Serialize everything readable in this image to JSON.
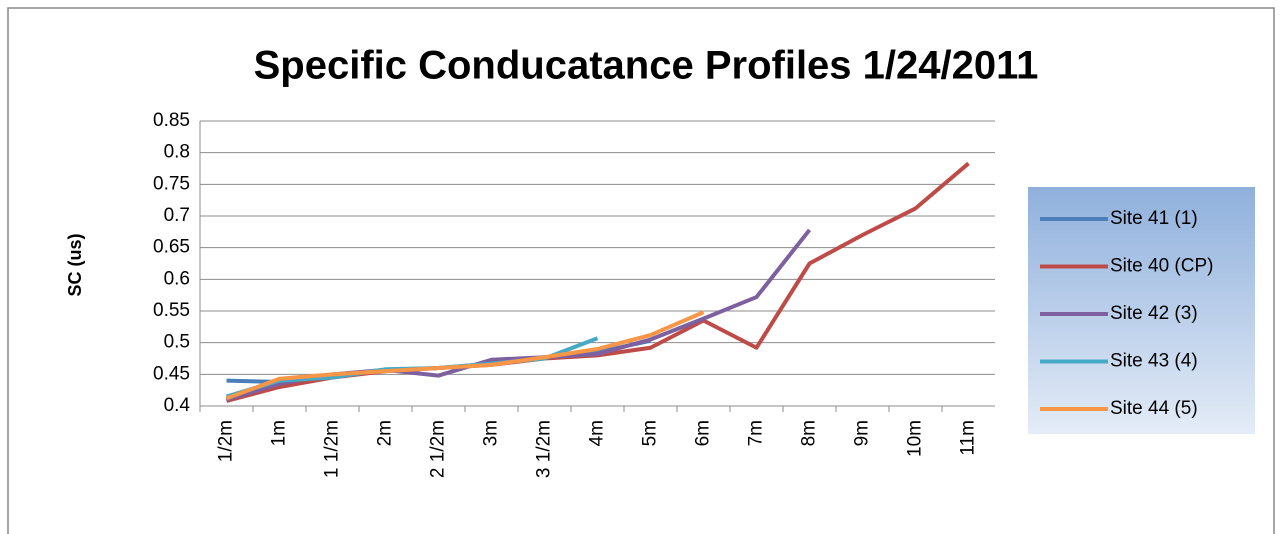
{
  "chart_data": {
    "type": "line",
    "title": "Specific Conducatance Profiles 1/24/2011",
    "y_label": "SC (us)",
    "categories": [
      "1/2m",
      "1m",
      "1 1/2m",
      "2m",
      "2 1/2m",
      "3m",
      "3 1/2m",
      "4m",
      "5m",
      "6m",
      "7m",
      "8m",
      "9m",
      "10m",
      "11m"
    ],
    "series": [
      {
        "name": "Site 41 (1)",
        "color": "#4a7ebb",
        "values": [
          0.44,
          0.438,
          0.447,
          0.456,
          0.46,
          0.467,
          0.477,
          0.485,
          0.503,
          null,
          null,
          null,
          null,
          null,
          null
        ]
      },
      {
        "name": "Site 40 (CP)",
        "color": "#be4b48",
        "values": [
          0.408,
          0.43,
          0.445,
          0.455,
          0.46,
          0.465,
          0.475,
          0.48,
          0.492,
          0.535,
          0.492,
          0.625,
          0.67,
          0.712,
          0.783
        ]
      },
      {
        "name": "Site 42 (3)",
        "color": "#7d60a0",
        "values": [
          0.41,
          0.435,
          0.45,
          0.457,
          0.448,
          0.473,
          0.477,
          0.482,
          0.505,
          0.538,
          0.572,
          0.678,
          null,
          null,
          null
        ]
      },
      {
        "name": "Site 43 (4)",
        "color": "#46aac5",
        "values": [
          0.415,
          0.44,
          0.445,
          0.458,
          0.46,
          0.467,
          0.475,
          0.507,
          null,
          null,
          null,
          null,
          null,
          null,
          null
        ]
      },
      {
        "name": "Site 44 (5)",
        "color": "#f79646",
        "values": [
          0.412,
          0.443,
          0.45,
          0.455,
          0.46,
          0.465,
          0.477,
          0.49,
          0.512,
          0.548,
          null,
          null,
          null,
          null,
          null
        ]
      }
    ],
    "ylim": [
      0.4,
      0.85
    ],
    "yticks": [
      0.4,
      0.45,
      0.5,
      0.55,
      0.6,
      0.65,
      0.7,
      0.75,
      0.8,
      0.85
    ],
    "grid": true,
    "legend": "right"
  }
}
